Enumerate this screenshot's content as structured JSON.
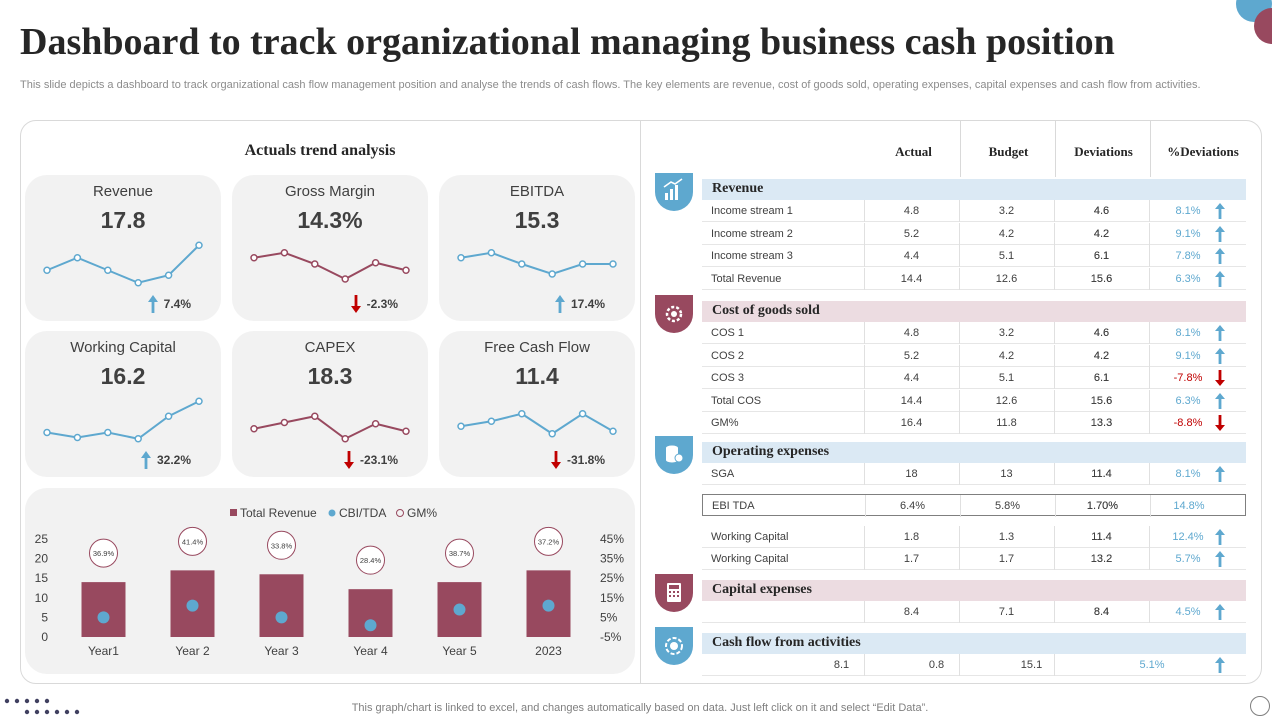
{
  "title": "Dashboard to track organizational managing business cash position",
  "subtitle": "This slide depicts a dashboard to track organizational cash flow management position and analyse the trends of cash flows. The key elements are revenue, cost of goods sold, operating expenses, capital expenses and cash flow from activities.",
  "colors": {
    "blue": "#5ea8cf",
    "maroon": "#98495f",
    "red": "#c00000",
    "band_blue": "#dbe9f4",
    "band_pink": "#ecdce1"
  },
  "trend": {
    "title": "Actuals trend analysis",
    "kpis": [
      {
        "label": "Revenue",
        "value": "17.8",
        "change": "7.4%",
        "direction": "up",
        "color": "blue",
        "spark": [
          3,
          4,
          3,
          2,
          2.6,
          5
        ]
      },
      {
        "label": "Gross Margin",
        "value": "14.3%",
        "change": "-2.3%",
        "direction": "down",
        "color": "maroon",
        "spark": [
          4,
          4.4,
          3.5,
          2.3,
          3.6,
          3
        ]
      },
      {
        "label": "EBITDA",
        "value": "15.3",
        "change": "17.4%",
        "direction": "up",
        "color": "blue",
        "spark": [
          4,
          4.4,
          3.5,
          2.7,
          3.5,
          3.5
        ]
      },
      {
        "label": "Working Capital",
        "value": "16.2",
        "change": "32.2%",
        "direction": "up",
        "color": "blue",
        "spark": [
          2.5,
          2.1,
          2.5,
          2.0,
          3.8,
          5
        ]
      },
      {
        "label": "CAPEX",
        "value": "18.3",
        "change": "-23.1%",
        "direction": "down",
        "color": "maroon",
        "spark": [
          2.8,
          3.3,
          3.8,
          2.0,
          3.2,
          2.6
        ]
      },
      {
        "label": "Free Cash Flow",
        "value": "11.4",
        "change": "-31.8%",
        "direction": "down",
        "color": "blue",
        "spark": [
          3,
          3.4,
          4,
          2.4,
          4,
          2.6
        ]
      }
    ]
  },
  "chart_data": {
    "type": "bar",
    "categories": [
      "Year1",
      "Year 2",
      "Year 3",
      "Year 4",
      "Year 5",
      "2023"
    ],
    "series": [
      {
        "name": "Total Revenue",
        "kind": "bar",
        "values": [
          14,
          17,
          16,
          12.2,
          14,
          17
        ]
      },
      {
        "name": "CBI/TDA",
        "kind": "dot",
        "values": [
          5,
          8,
          5,
          3,
          7,
          8
        ]
      },
      {
        "name": "GM%",
        "kind": "label",
        "values": [
          "36.9%",
          "41.4%",
          "33.8%",
          "28.4%",
          "38.7%",
          "37.2%"
        ]
      }
    ],
    "ylim": [
      0,
      25
    ],
    "yticks": [
      "25",
      "20",
      "15",
      "10",
      "5",
      "0"
    ],
    "y2ticks": [
      "45%",
      "35%",
      "25%",
      "15%",
      "5%",
      "-5%"
    ],
    "legend": [
      "Total Revenue",
      "CBI/TDA",
      "GM%"
    ]
  },
  "table": {
    "headers": [
      "Actual",
      "Budget",
      "Deviations",
      "%Deviations"
    ],
    "sections": [
      {
        "title": "Revenue",
        "band": "blue",
        "icon": "chart-growth-icon",
        "rows": [
          {
            "label": "Income stream 1",
            "actual": "4.8",
            "budget": "3.2",
            "dev": "4.6",
            "pct": "8.1%",
            "dir": "up"
          },
          {
            "label": "Income stream 2",
            "actual": "5.2",
            "budget": "4.2",
            "dev": "4.2",
            "pct": "9.1%",
            "dir": "up"
          },
          {
            "label": "Income stream 3",
            "actual": "4.4",
            "budget": "5.1",
            "dev": "6.1",
            "pct": "7.8%",
            "dir": "up"
          },
          {
            "label": "Total Revenue",
            "actual": "14.4",
            "budget": "12.6",
            "dev": "15.6",
            "pct": "6.3%",
            "dir": "up"
          }
        ]
      },
      {
        "title": "Cost of goods sold",
        "band": "pink",
        "icon": "gear-money-icon",
        "rows": [
          {
            "label": "COS 1",
            "actual": "4.8",
            "budget": "3.2",
            "dev": "4.6",
            "pct": "8.1%",
            "dir": "up"
          },
          {
            "label": "COS 2",
            "actual": "5.2",
            "budget": "4.2",
            "dev": "4.2",
            "pct": "9.1%",
            "dir": "up"
          },
          {
            "label": "COS 3",
            "actual": "4.4",
            "budget": "5.1",
            "dev": "6.1",
            "pct": "-7.8%",
            "dir": "down"
          },
          {
            "label": "Total COS",
            "actual": "14.4",
            "budget": "12.6",
            "dev": "15.6",
            "pct": "6.3%",
            "dir": "up"
          },
          {
            "label": "GM%",
            "actual": "16.4",
            "budget": "11.8",
            "dev": "13.3",
            "pct": "-8.8%",
            "dir": "down"
          }
        ]
      },
      {
        "title": "Operating expenses",
        "band": "blue",
        "icon": "coins-icon",
        "rows": [
          {
            "label": "SGA",
            "actual": "18",
            "budget": "13",
            "dev": "11.4",
            "pct": "8.1%",
            "dir": "up"
          },
          {
            "label": "EBI TDA",
            "actual": "6.4%",
            "budget": "5.8%",
            "dev": "1.70%",
            "pct": "14.8%",
            "dir": "none",
            "boxed": true
          },
          {
            "label": "Working Capital",
            "actual": "1.8",
            "budget": "1.3",
            "dev": "11.4",
            "pct": "12.4%",
            "dir": "up"
          },
          {
            "label": "Working Capital",
            "actual": "1.7",
            "budget": "1.7",
            "dev": "13.2",
            "pct": "5.7%",
            "dir": "up"
          }
        ]
      },
      {
        "title": "Capital expenses",
        "band": "pink",
        "icon": "calculator-icon",
        "rows": [
          {
            "label": "",
            "actual": "8.4",
            "budget": "7.1",
            "dev": "8.4",
            "pct": "4.5%",
            "dir": "up"
          }
        ]
      },
      {
        "title": "Cash flow from activities",
        "band": "blue",
        "icon": "cash-cycle-icon",
        "rows": [
          {
            "label": "8.1",
            "actual": "0.8",
            "budget": "15.1",
            "dev": "",
            "pct": "5.1%",
            "dir": "up",
            "shifted": true
          }
        ]
      }
    ]
  },
  "footer": "This graph/chart is linked to excel,  and changes automatically based on data. Just left click on it and select “Edit Data”."
}
